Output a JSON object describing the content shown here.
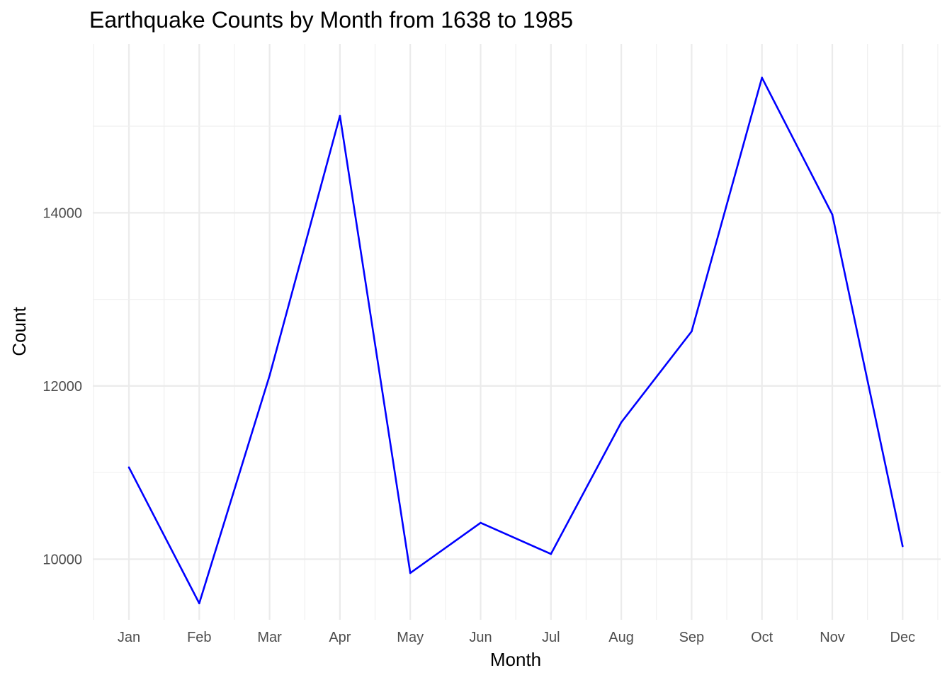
{
  "chart_data": {
    "type": "line",
    "title": "Earthquake Counts by Month from 1638 to 1985",
    "xlabel": "Month",
    "ylabel": "Count",
    "categories": [
      "Jan",
      "Feb",
      "Mar",
      "Apr",
      "May",
      "Jun",
      "Jul",
      "Aug",
      "Sep",
      "Oct",
      "Nov",
      "Dec"
    ],
    "series": [
      {
        "values": [
          11060,
          9490,
          12120,
          15120,
          9840,
          10420,
          10060,
          11580,
          12630,
          15560,
          13980,
          10150
        ]
      }
    ],
    "yticks": [
      "10000",
      "12000",
      "14000"
    ],
    "ylim": [
      9300,
      15950
    ],
    "line_color": "#0000ff",
    "grid": true
  }
}
